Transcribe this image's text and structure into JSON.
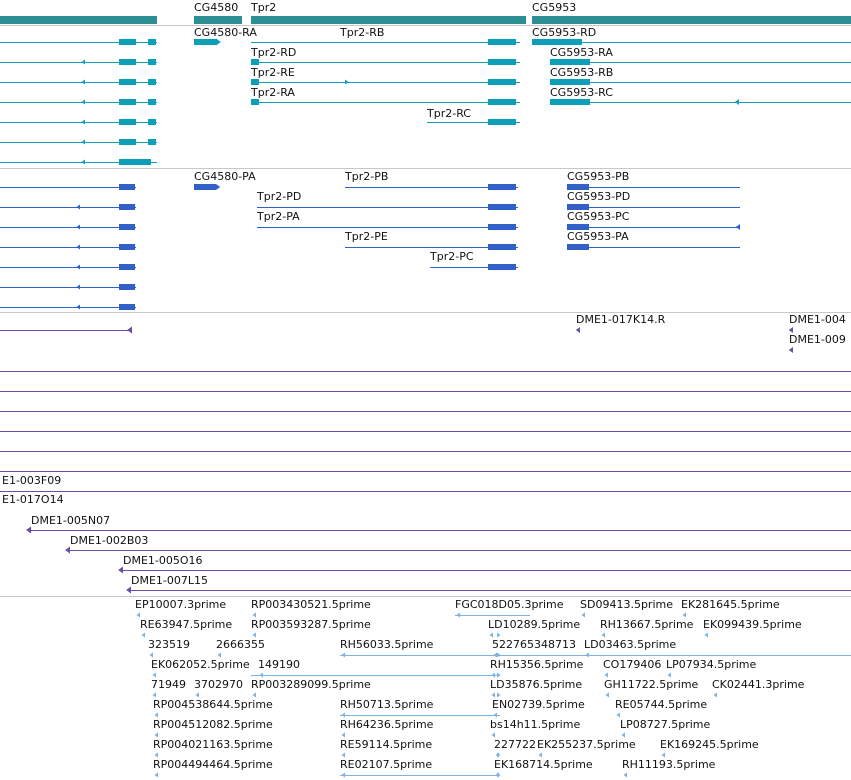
{
  "colors": {
    "gene": "#2c8f94",
    "transcript": "#0e9fb8",
    "protein": "#2f61c9",
    "clone": "#6a4ea8",
    "est": "#7db4e2",
    "separator": "#c8c8c8",
    "text": "#111111"
  },
  "tracks": {
    "genes": {
      "labels": [
        {
          "text": "CG4580"
        },
        {
          "text": "Tpr2"
        },
        {
          "text": "CG5953"
        }
      ]
    },
    "transcripts": {
      "labels": [
        {
          "text": "CG4580-RA"
        },
        {
          "text": "Tpr2-RB"
        },
        {
          "text": "CG5953-RD"
        },
        {
          "text": "Tpr2-RD"
        },
        {
          "text": "CG5953-RA"
        },
        {
          "text": "Tpr2-RE"
        },
        {
          "text": "CG5953-RB"
        },
        {
          "text": "Tpr2-RA"
        },
        {
          "text": "CG5953-RC"
        },
        {
          "text": "Tpr2-RC"
        }
      ]
    },
    "proteins": {
      "labels": [
        {
          "text": "CG4580-PA"
        },
        {
          "text": "Tpr2-PB"
        },
        {
          "text": "CG5953-PB"
        },
        {
          "text": "Tpr2-PD"
        },
        {
          "text": "CG5953-PD"
        },
        {
          "text": "Tpr2-PA"
        },
        {
          "text": "CG5953-PC"
        },
        {
          "text": "Tpr2-PE"
        },
        {
          "text": "CG5953-PA"
        },
        {
          "text": "Tpr2-PC"
        }
      ]
    },
    "clones": {
      "labels": [
        {
          "text": "DME1-017K14.R"
        },
        {
          "text": "DME1-004"
        },
        {
          "text": "DME1-009"
        },
        {
          "text": "E1-003F09"
        },
        {
          "text": "E1-017O14"
        },
        {
          "text": "DME1-005N07"
        },
        {
          "text": "DME1-002B03"
        },
        {
          "text": "DME1-005O16"
        },
        {
          "text": "DME1-007L15"
        }
      ]
    },
    "ests": {
      "labels": [
        {
          "text": "EP10007.3prime"
        },
        {
          "text": "RP003430521.5prime"
        },
        {
          "text": "FGC018D05.3prime"
        },
        {
          "text": "SD09413.5prime"
        },
        {
          "text": "EK281645.5prime"
        },
        {
          "text": "RE63947.5prime"
        },
        {
          "text": "RP003593287.5prime"
        },
        {
          "text": "LD10289.5prime"
        },
        {
          "text": "RH13667.5prime"
        },
        {
          "text": "EK099439.5prime"
        },
        {
          "text": "323519"
        },
        {
          "text": "2666355"
        },
        {
          "text": "RH56033.5prime"
        },
        {
          "text": "522765348713"
        },
        {
          "text": "LD03463.5prime"
        },
        {
          "text": "EK062052.5prime"
        },
        {
          "text": "149190"
        },
        {
          "text": "RH15356.5prime"
        },
        {
          "text": "CO179406"
        },
        {
          "text": "LP07934.5prime"
        },
        {
          "text": "71949"
        },
        {
          "text": "3702970"
        },
        {
          "text": "RP003289099.5prime"
        },
        {
          "text": "LD35876.5prime"
        },
        {
          "text": "GH11722.5prime"
        },
        {
          "text": "CK02441.3prime"
        },
        {
          "text": "RP004538644.5prime"
        },
        {
          "text": "RH50713.5prime"
        },
        {
          "text": "EN02739.5prime"
        },
        {
          "text": "RE05744.5prime"
        },
        {
          "text": "RP004512082.5prime"
        },
        {
          "text": "RH64236.5prime"
        },
        {
          "text": "bs14h11.5prime"
        },
        {
          "text": "LP08727.5prime"
        },
        {
          "text": "RP004021163.5prime"
        },
        {
          "text": "RE59114.5prime"
        },
        {
          "text": "227722"
        },
        {
          "text": "EK255237.5prime"
        },
        {
          "text": "EK169245.5prime"
        },
        {
          "text": "RP004494464.5prime"
        },
        {
          "text": "RE02107.5prime"
        },
        {
          "text": "EK168714.5prime"
        },
        {
          "text": "RH11193.5prime"
        }
      ]
    }
  }
}
